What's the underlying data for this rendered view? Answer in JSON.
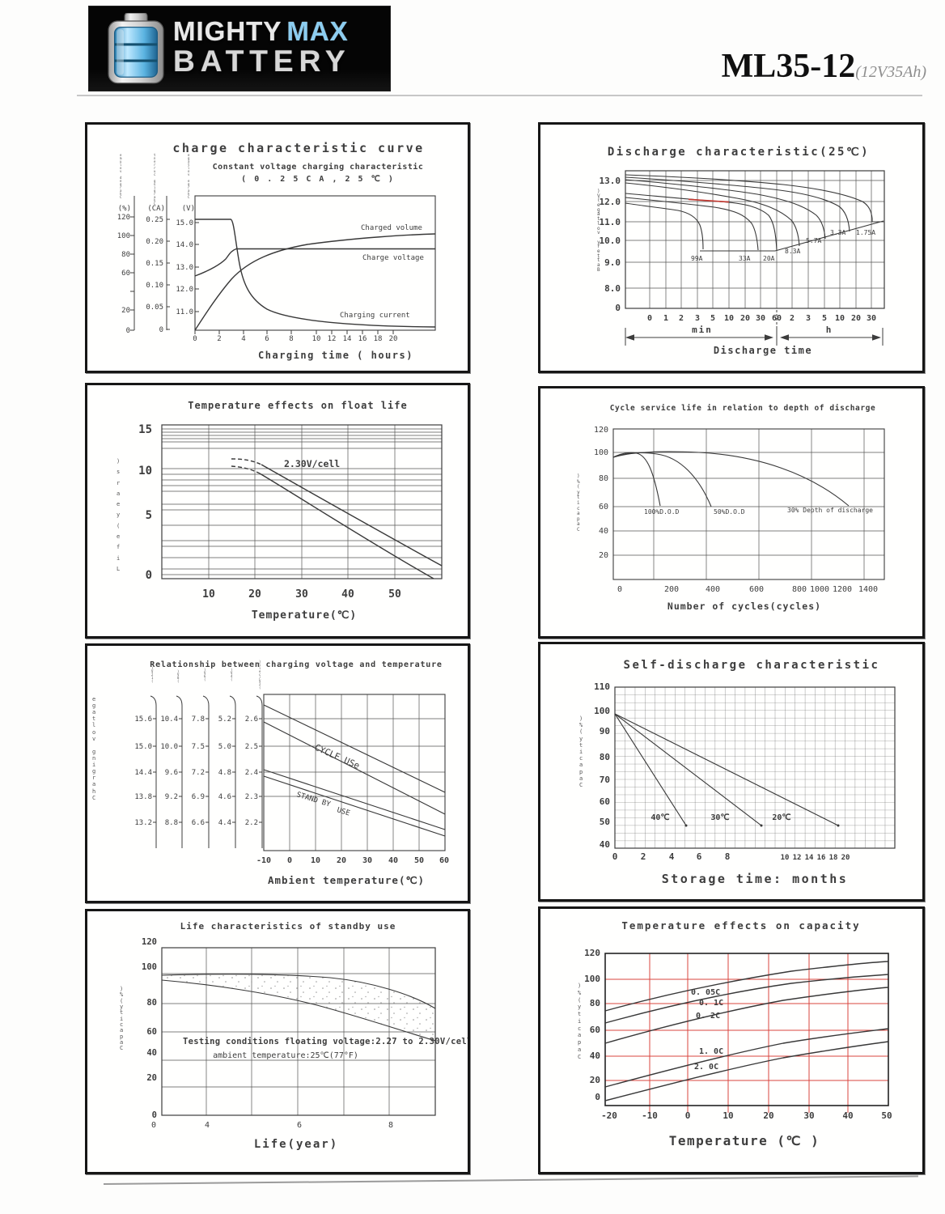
{
  "page": {
    "brand": {
      "word1": "MIGHTY",
      "word2": "MAX",
      "word3": "BATTERY"
    },
    "model": "ML35-12",
    "model_sub": "(12V35Ah)"
  },
  "colors": {
    "accent_red_curve": "#c4372f",
    "grid_red": "#d9443f",
    "brand_blue": "#8ccdf0",
    "panel_border": "#161616"
  },
  "chart_data": [
    {
      "type": "line",
      "title": "charge characteristic curve",
      "subtitle": "Constant voltage charging characteristic",
      "condition": "( 0 . 2 5 C A , 2 5 ℃ )",
      "xlabel": "Charging time ( hours)",
      "x_ticks": [
        "0",
        "2",
        "4",
        "6",
        "8",
        "10",
        "12",
        "14",
        "16",
        "18",
        "20"
      ],
      "y_axes": [
        {
          "unit": "(%)",
          "label": "Charged volume",
          "ticks": [
            "120",
            "100",
            "80",
            "60",
            "20",
            "0"
          ]
        },
        {
          "unit": "(CA)",
          "label": "Charging current",
          "ticks": [
            "0.25",
            "0.20",
            "0.15",
            "0.10",
            "0.05",
            "0"
          ]
        },
        {
          "unit": "(V)",
          "label": "Charge voltage",
          "ticks": [
            "15.0",
            "14.0",
            "13.0",
            "12.0",
            "11.0"
          ]
        }
      ],
      "series": [
        {
          "name": "Charged volume",
          "unit": "%",
          "x_hours": [
            0,
            2,
            4,
            6,
            8,
            12,
            16,
            20,
            24
          ],
          "values": [
            0,
            30,
            57,
            72,
            82,
            92,
            96,
            99,
            100
          ]
        },
        {
          "name": "Charge voltage",
          "unit": "V",
          "x_hours": [
            0,
            1,
            2,
            3,
            4,
            24
          ],
          "values": [
            12.6,
            13.0,
            13.3,
            13.7,
            13.9,
            13.9
          ]
        },
        {
          "name": "Charging current",
          "unit": "CA",
          "x_hours": [
            0,
            3,
            4,
            6,
            8,
            12,
            24
          ],
          "values": [
            0.25,
            0.25,
            0.13,
            0.07,
            0.04,
            0.02,
            0.01
          ]
        }
      ]
    },
    {
      "type": "line",
      "title": "Discharge characteristic(25℃)",
      "ylabel": "Battery voltage(V)",
      "xlabel": "Discharge time",
      "y_ticks": [
        "13.0",
        "12.0",
        "11.0",
        "10.0",
        "9.0",
        "8.0",
        "0"
      ],
      "x_ticks_min": [
        "0",
        "1",
        "2",
        "3",
        "5",
        "10",
        "20",
        "30",
        "60"
      ],
      "x_ticks_h": [
        "2",
        "3",
        "5",
        "10",
        "20",
        "30"
      ],
      "x_unit_min": "min",
      "x_unit_h": "h",
      "series": [
        {
          "name": "99A",
          "plateau_v": 12.0,
          "end_time": "≈6 min",
          "final_v": 9.6
        },
        {
          "name": "33A",
          "plateau_v": 12.2,
          "end_time": "≈30 min",
          "final_v": 9.6
        },
        {
          "name": "20A",
          "plateau_v": 12.3,
          "end_time": "≈60 min",
          "final_v": 9.6
        },
        {
          "name": "8.3A",
          "plateau_v": 12.7,
          "end_time": "≈3 h",
          "final_v": 10.1
        },
        {
          "name": "5.7A",
          "plateau_v": 12.8,
          "end_time": "≈5 h",
          "final_v": 10.3
        },
        {
          "name": "3.3A",
          "plateau_v": 12.9,
          "end_time": "≈10 h",
          "final_v": 10.6
        },
        {
          "name": "1.75A",
          "plateau_v": 13.0,
          "end_time": "≈30 h",
          "final_v": 10.9
        }
      ]
    },
    {
      "type": "line",
      "title": "Temperature effects on float life",
      "ylabel": "Life(years)",
      "xlabel": "Temperature(℃)",
      "annotation": "2.30V/cell",
      "y_ticks": [
        "15",
        "10",
        "5",
        "0"
      ],
      "x_ticks": [
        "10",
        "20",
        "30",
        "40",
        "50"
      ],
      "series": [
        {
          "name": "band upper",
          "x_c": [
            15,
            20,
            30,
            40,
            50
          ],
          "years": [
            11.5,
            11,
            8,
            4.5,
            1.5
          ]
        },
        {
          "name": "band lower",
          "x_c": [
            15,
            20,
            30,
            40,
            50
          ],
          "years": [
            10.8,
            10,
            7,
            3.5,
            0
          ]
        }
      ]
    },
    {
      "type": "line",
      "title": "Cycle service life in relation to depth of discharge",
      "ylabel": "Capacity(%)",
      "xlabel": "Number of cycles(cycles)",
      "y_ticks": [
        "120",
        "100",
        "80",
        "60",
        "40",
        "20"
      ],
      "x_ticks": [
        "0",
        "200",
        "400",
        "600",
        "800",
        "1000",
        "1200",
        "1400"
      ],
      "series": [
        {
          "name": "100%D.O.D",
          "x_cycles": [
            0,
            50,
            100,
            150,
            200
          ],
          "capacity": [
            97,
            100,
            93,
            78,
            60
          ]
        },
        {
          "name": "50%D.O.D",
          "x_cycles": [
            0,
            100,
            200,
            300,
            400
          ],
          "capacity": [
            97,
            100,
            95,
            85,
            60
          ]
        },
        {
          "name": "30% Depth of discharge",
          "x_cycles": [
            0,
            200,
            500,
            800,
            1100,
            1250
          ],
          "capacity": [
            97,
            100,
            98,
            92,
            75,
            60
          ]
        }
      ]
    },
    {
      "type": "line",
      "title": "Relationship between charging voltage and temperature",
      "ylabel": "Charging voltage",
      "xlabel": "Ambient temperature(℃)",
      "x_ticks": [
        "-10",
        "0",
        "10",
        "20",
        "30",
        "40",
        "50",
        "60"
      ],
      "scales": [
        {
          "name": "(12V)",
          "ticks": [
            "15.6",
            "15.0",
            "14.4",
            "13.8",
            "13.2"
          ]
        },
        {
          "name": "(8V)",
          "ticks": [
            "10.4",
            "10.0",
            "9.6",
            "9.2",
            "8.8"
          ]
        },
        {
          "name": "(6V)",
          "ticks": [
            "7.8",
            "7.5",
            "7.2",
            "6.9",
            "6.6"
          ]
        },
        {
          "name": "(4V)",
          "ticks": [
            "5.2",
            "5.0",
            "4.8",
            "4.6",
            "4.4"
          ]
        },
        {
          "name": "(2V/cell)",
          "ticks": [
            "2.6",
            "2.5",
            "2.4",
            "2.3",
            "2.2"
          ]
        }
      ],
      "bands": [
        {
          "name": "CYCLE USe",
          "v_per_cell_cold": 2.62,
          "v_per_cell_hot": 2.35
        },
        {
          "name": "STAND BY USE",
          "display_1": "STAND BY",
          "display_2": "USE",
          "v_per_cell_cold": 2.44,
          "v_per_cell_hot": 2.22
        }
      ]
    },
    {
      "type": "line",
      "title": "Self-discharge characteristic",
      "ylabel": "Capacity(%)",
      "xlabel": "Storage time: months",
      "y_ticks": [
        "110",
        "100",
        "90",
        "80",
        "70",
        "60",
        "50",
        "40"
      ],
      "x_ticks_main": [
        "0",
        "2",
        "4",
        "6",
        "8"
      ],
      "x_ticks_cluster": [
        "10",
        "12",
        "14",
        "16",
        "18",
        "20"
      ],
      "series": [
        {
          "name": "40℃",
          "x_months": [
            0,
            5
          ],
          "capacity": [
            100,
            49
          ]
        },
        {
          "name": "30℃",
          "x_months": [
            0,
            10.5
          ],
          "capacity": [
            100,
            49
          ]
        },
        {
          "name": "20℃",
          "x_months": [
            0,
            20.5
          ],
          "capacity": [
            100,
            49
          ]
        }
      ]
    },
    {
      "type": "line",
      "title": "Life characteristics of standby use",
      "ylabel": "Capacity(%)",
      "xlabel": "Life(year)",
      "note1": "Testing conditions floating voltage:2.27 to 2.30V/cell",
      "note2": "ambient temperature:25℃(77°F)",
      "y_ticks": [
        "120",
        "100",
        "80",
        "60",
        "40",
        "20",
        "0"
      ],
      "x_ticks": [
        "0",
        "4",
        "6",
        "8"
      ],
      "series": [
        {
          "name": "band upper",
          "x_years": [
            0,
            2,
            4,
            6,
            8,
            10
          ],
          "capacity": [
            96,
            96,
            95,
            92,
            87,
            78
          ]
        },
        {
          "name": "band lower",
          "x_years": [
            0,
            2,
            4,
            6,
            8,
            10
          ],
          "capacity": [
            94,
            91,
            86,
            78,
            66,
            50
          ]
        }
      ]
    },
    {
      "type": "line",
      "title": "Temperature effects on  capacity",
      "ylabel": "Capacity(%)",
      "xlabel": "Temperature (℃ )",
      "grid_color": "#d9443f",
      "y_ticks": [
        "120",
        "100",
        "80",
        "60",
        "40",
        "20",
        "0"
      ],
      "x_ticks": [
        "-20",
        "-10",
        "0",
        "10",
        "20",
        "30",
        "40",
        "50"
      ],
      "series": [
        {
          "name": "0. 05C",
          "x_c": [
            -20,
            0,
            25,
            50
          ],
          "capacity": [
            73,
            88,
            103,
            114
          ]
        },
        {
          "name": "0. 1C",
          "x_c": [
            -20,
            0,
            25,
            50
          ],
          "capacity": [
            63,
            79,
            95,
            104
          ]
        },
        {
          "name": "0. 2C",
          "x_c": [
            -20,
            0,
            25,
            50
          ],
          "capacity": [
            46,
            64,
            84,
            93
          ]
        },
        {
          "name": "1. 0C",
          "x_c": [
            -20,
            0,
            25,
            50
          ],
          "capacity": [
            9,
            28,
            46,
            58
          ]
        },
        {
          "name": "2. 0C",
          "x_c": [
            -20,
            0,
            25,
            50
          ],
          "capacity": [
            -3,
            17,
            36,
            47
          ]
        }
      ]
    }
  ]
}
